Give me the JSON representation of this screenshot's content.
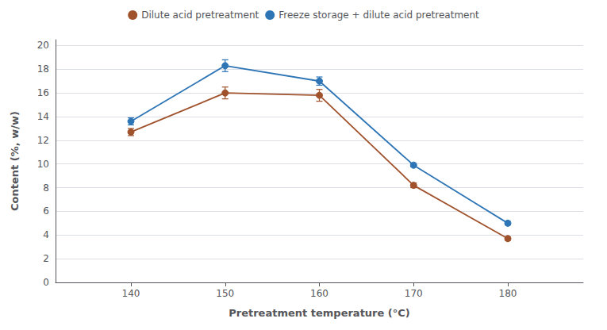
{
  "chart_data": {
    "type": "line",
    "xlabel": "Pretreatment temperature (°C)",
    "ylabel": "Content (%, w/w)",
    "x": [
      140,
      150,
      160,
      170,
      180
    ],
    "series": [
      {
        "name": "Dilute acid pretreatment",
        "color": "#A0522D",
        "marker": "circle",
        "values": [
          12.7,
          16.0,
          15.8,
          8.2,
          3.7
        ],
        "yerr": [
          0.3,
          0.5,
          0.5,
          0.2,
          0.15
        ]
      },
      {
        "name": "Freeze storage + dilute acid pretreatment",
        "color": "#2E75B6",
        "marker": "circle",
        "values": [
          13.6,
          18.3,
          17.0,
          9.9,
          5.0
        ],
        "yerr": [
          0.3,
          0.5,
          0.35,
          0.15,
          0.15
        ]
      }
    ],
    "xlim": [
      132,
      188
    ],
    "xticks": [
      140,
      150,
      160,
      170,
      180
    ],
    "ylim": [
      0,
      20.5
    ],
    "yticks": [
      0,
      2,
      4,
      6,
      8,
      10,
      12,
      14,
      16,
      18,
      20
    ],
    "grid": true,
    "legend": "top"
  }
}
